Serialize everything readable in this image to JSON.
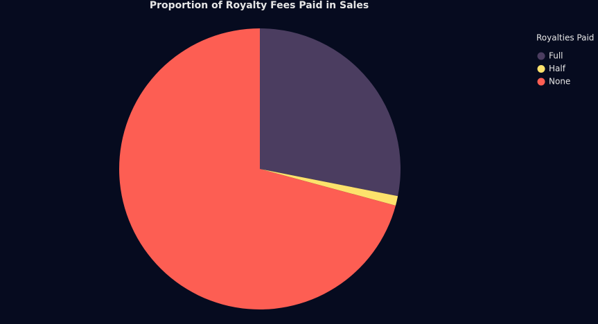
{
  "chart_data": {
    "type": "pie",
    "title": "Proportion of Royalty Fees Paid in Sales",
    "legend_title": "Royalties Paid",
    "categories": [
      "Full",
      "Half",
      "None"
    ],
    "values": [
      28.1,
      1.1,
      70.8
    ],
    "colors": [
      "#4b3d60",
      "#fde26c",
      "#fd5e53"
    ],
    "legend": "right"
  }
}
